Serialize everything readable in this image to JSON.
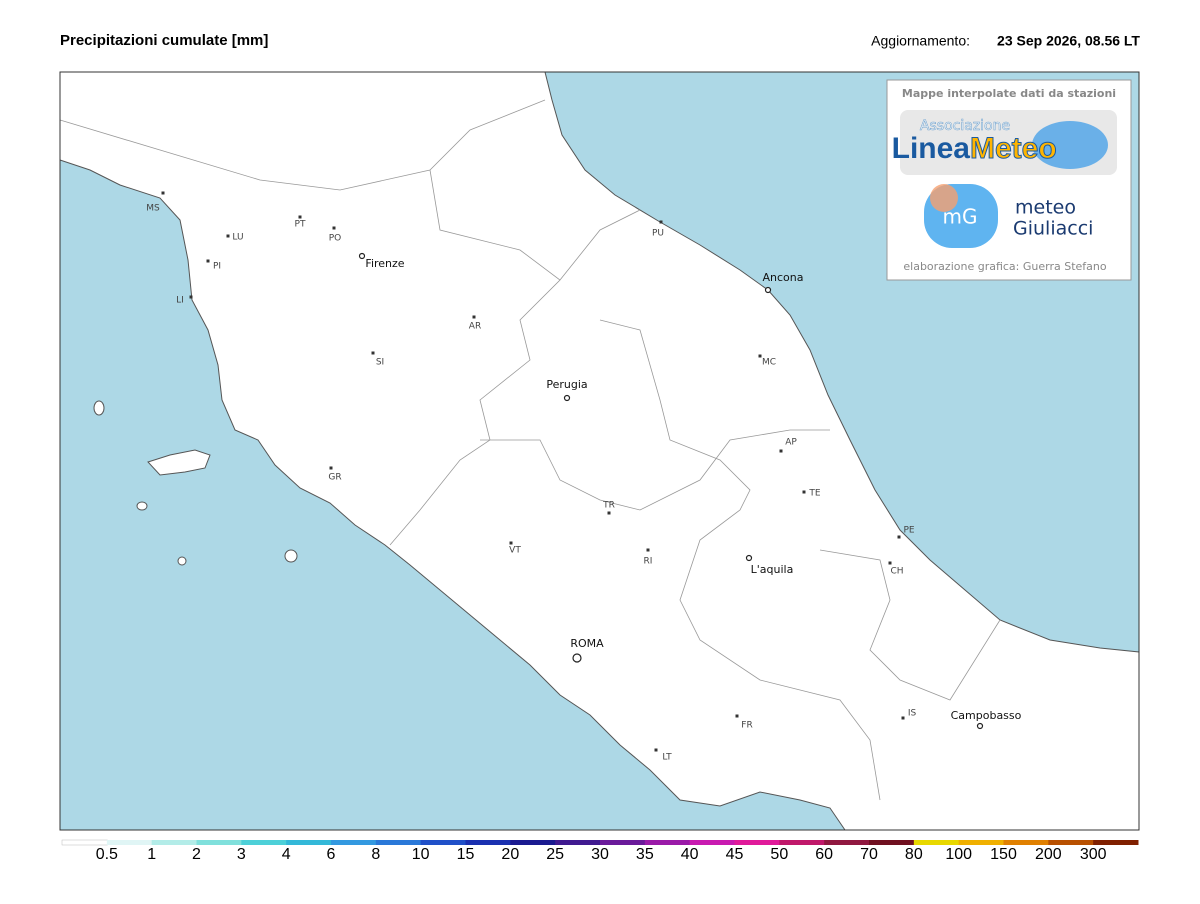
{
  "header": {
    "title": "Precipitazioni cumulate [mm]",
    "update_label": "Aggiornamento:",
    "update_time": "23 Sep 2026, 08.56 LT"
  },
  "credits": {
    "caption": "Mappe interpolate dati da stazioni",
    "logo1_small": "Associazione",
    "logo1_part1": "Linea",
    "logo1_part2": "Meteo",
    "logo2_badge": "mG",
    "logo2_line1": "meteo",
    "logo2_line2": "Giuliacci",
    "footer": "elaborazione grafica: Guerra Stefano"
  },
  "places": [
    "MS",
    "LU",
    "PT",
    "PO",
    "PI",
    "LI",
    "Firenze",
    "AR",
    "SI",
    "PU",
    "Ancona",
    "MC",
    "Perugia",
    "AP",
    "GR",
    "TE",
    "TR",
    "PE",
    "VT",
    "RI",
    "L'aquila",
    "CH",
    "ROMA",
    "IS",
    "Campobasso",
    "FR",
    "LT"
  ],
  "legend": {
    "ticks": [
      0.5,
      1,
      2,
      3,
      4,
      6,
      8,
      10,
      15,
      20,
      25,
      30,
      35,
      40,
      45,
      50,
      60,
      70,
      80,
      100,
      150,
      200,
      300
    ],
    "colors": [
      "#ffffff",
      "#e0f5f5",
      "#b3ece8",
      "#80e0dc",
      "#4dd0d8",
      "#33b8d8",
      "#3399e0",
      "#2a78d8",
      "#2050c8",
      "#1a30b0",
      "#1a1a90",
      "#401a90",
      "#6a1a9a",
      "#9a1aa8",
      "#c81ab0",
      "#e01a9a",
      "#c0186a",
      "#901840",
      "#701020",
      "#e8d800",
      "#f0b000",
      "#e08000",
      "#b85000",
      "#802000"
    ]
  }
}
